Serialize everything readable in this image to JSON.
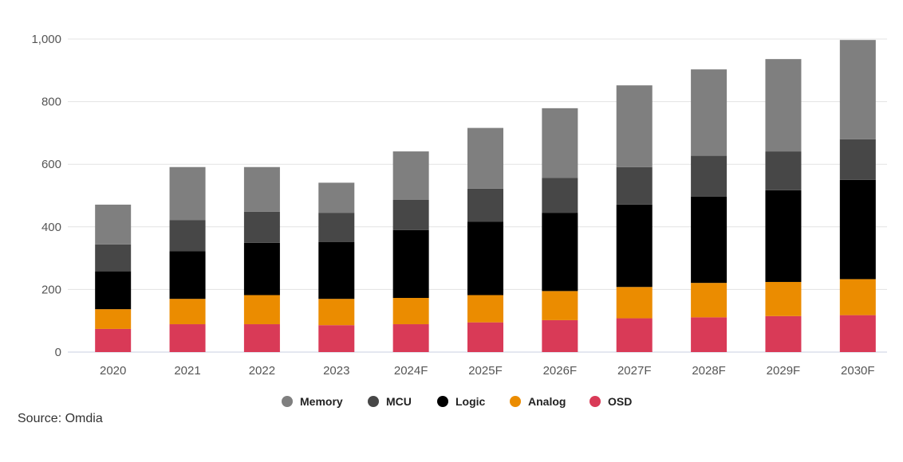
{
  "chart_data": {
    "type": "bar",
    "stacked": true,
    "categories": [
      "2020",
      "2021",
      "2022",
      "2023",
      "2024F",
      "2025F",
      "2026F",
      "2027F",
      "2028F",
      "2029F",
      "2030F"
    ],
    "series": [
      {
        "name": "OSD",
        "color": "#d93a57",
        "values": [
          74,
          89,
          89,
          86,
          89,
          95,
          102,
          108,
          111,
          115,
          118
        ]
      },
      {
        "name": "Analog",
        "color": "#eb8c00",
        "values": [
          63,
          81,
          93,
          84,
          84,
          87,
          93,
          100,
          110,
          109,
          115
        ]
      },
      {
        "name": "Logic",
        "color": "#000000",
        "values": [
          121,
          152,
          167,
          182,
          217,
          234,
          250,
          263,
          276,
          293,
          317
        ]
      },
      {
        "name": "MCU",
        "color": "#474747",
        "values": [
          86,
          100,
          99,
          93,
          96,
          106,
          111,
          120,
          130,
          124,
          130
        ]
      },
      {
        "name": "Memory",
        "color": "#7f7f7f",
        "values": [
          127,
          169,
          143,
          96,
          155,
          194,
          223,
          261,
          276,
          295,
          317
        ]
      }
    ],
    "legend_order": [
      "Memory",
      "MCU",
      "Logic",
      "Analog",
      "OSD"
    ],
    "ylim": [
      0,
      1000
    ],
    "yticks": [
      "0",
      "200",
      "400",
      "600",
      "800",
      "1,000"
    ],
    "ytick_values": [
      0,
      200,
      400,
      600,
      800,
      1000
    ],
    "grid": true,
    "legend_position": "bottom",
    "title": "",
    "xlabel": "",
    "ylabel": ""
  },
  "source": "Source: Omdia"
}
